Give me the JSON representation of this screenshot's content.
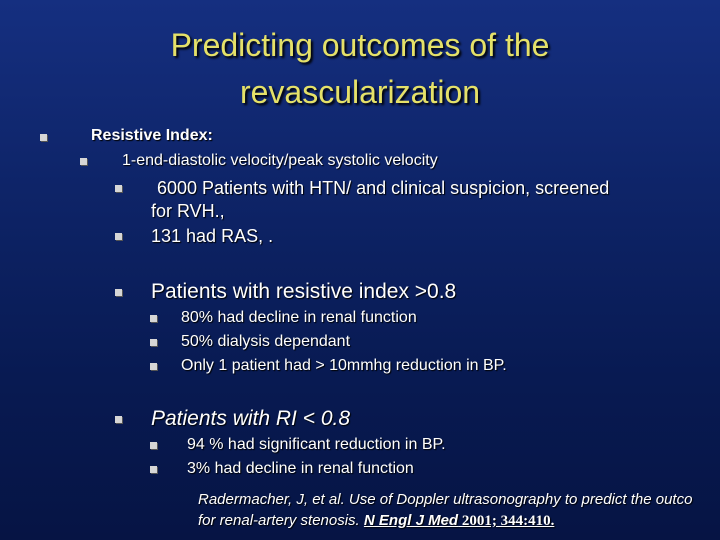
{
  "title": {
    "line1": "Predicting  outcomes of the",
    "line2": "revascularization"
  },
  "items": {
    "resistive_index": "Resistive Index:",
    "ri_formula": "1-end-diastolic velocity/peak systolic velocity",
    "patients_line1": "6000 Patients with HTN/ and clinical suspicion,  screened",
    "patients_line2": "for RVH.,",
    "ras": "131 had RAS, .",
    "ri_high": "Patients with resistive index >0.8",
    "ri_high_1": "80% had decline in renal function",
    "ri_high_2": "50% dialysis dependant",
    "ri_high_3": "Only 1 patient had > 10mmhg reduction in BP.",
    "ri_low": "Patients with RI < 0.8",
    "ri_low_1": "94 % had significant reduction in BP.",
    "ri_low_2": "3% had decline in renal function"
  },
  "reference": {
    "line1": "Radermacher, J, et al. Use of Doppler ultrasonography to predict the outco",
    "line2_prefix": "for renal-artery stenosis. ",
    "journal": "N Engl J Med",
    "year_vol": " 2001; 344:410."
  },
  "colors": {
    "background": "#0e2468",
    "title": "#e5e169",
    "bullet": "#d6d6d6"
  }
}
